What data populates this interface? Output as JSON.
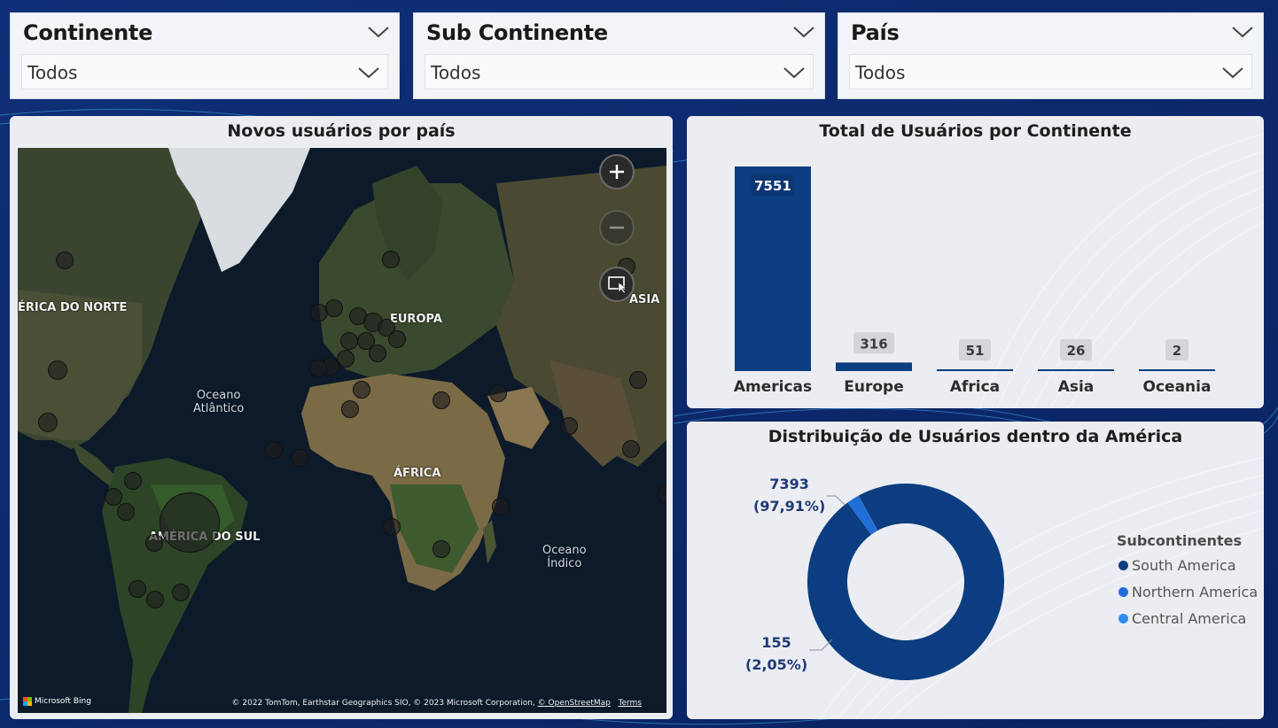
{
  "slicers": [
    {
      "title": "Continente",
      "value": "Todos"
    },
    {
      "title": "Sub Continente",
      "value": "Todos"
    },
    {
      "title": "País",
      "value": "Todos"
    }
  ],
  "map": {
    "title": "Novos usuários por país",
    "labels": {
      "north_america": "ÉRICA DO NORTE",
      "europe": "EUROPA",
      "asia": "ASIA",
      "africa": "ÁFRICA",
      "south_america": "AMÉRICA DO SUL",
      "atlantic_1": "Oceano",
      "atlantic_2": "Atlântico",
      "indian_1": "Oceano",
      "indian_2": "Índico"
    },
    "bing_label": "Microsoft Bing",
    "attribution": "© 2022 TomTom, Earthstar Geographics SIO, © 2023 Microsoft Corporation,",
    "osm_link": "© OpenStreetMap",
    "terms_link": "Terms",
    "controls": [
      "zoom-in",
      "zoom-out",
      "select-area"
    ]
  },
  "bar_chart": {
    "title": "Total de Usuários por Continente",
    "bar_color": "#0b3d80"
  },
  "donut": {
    "title": "Distribuição de Usuários dentro da América",
    "legend_title": "Subcontinentes",
    "label_main_value": "7393",
    "label_main_pct": "(97,91%)",
    "label_small_value": "155",
    "label_small_pct": "(2,05%)"
  },
  "chart_data": [
    {
      "type": "bar",
      "title": "Total de Usuários por Continente",
      "categories": [
        "Americas",
        "Europe",
        "Africa",
        "Asia",
        "Oceania"
      ],
      "values": [
        7551,
        316,
        51,
        26,
        2
      ],
      "ylim": [
        0,
        7551
      ],
      "grid": false
    },
    {
      "type": "pie",
      "title": "Distribuição de Usuários dentro da América",
      "labels": [
        "South America",
        "Northern America",
        "Central America"
      ],
      "values": [
        7393,
        155,
        3
      ],
      "colors": [
        "#0b3d80",
        "#1f6fd6",
        "#2f8bee"
      ],
      "legend_position": "right"
    }
  ]
}
